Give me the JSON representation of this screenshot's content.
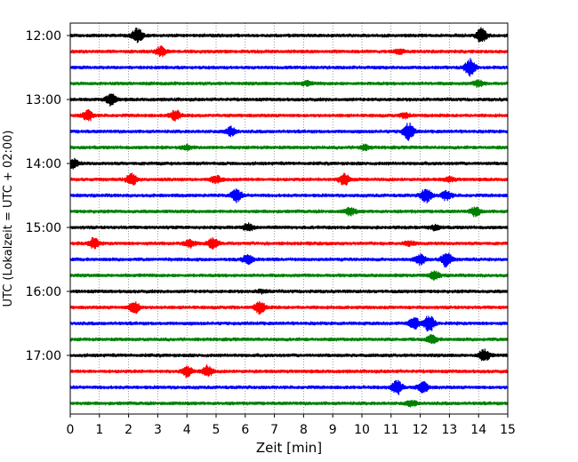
{
  "chart_data": {
    "type": "line",
    "title": "",
    "xlabel": "Zeit  [min]",
    "ylabel": "UTC (Lokalzeit = UTC + 02:00)",
    "xlim": [
      0,
      15
    ],
    "x_ticks": [
      "0",
      "1",
      "2",
      "3",
      "4",
      "5",
      "6",
      "7",
      "8",
      "9",
      "10",
      "11",
      "12",
      "13",
      "14",
      "15"
    ],
    "y_ticks": [
      "12:00",
      "13:00",
      "14:00",
      "15:00",
      "16:00",
      "17:00"
    ],
    "grid": "vertical dotted",
    "trace_interval_minutes": 15,
    "trace_colors": [
      "#000000",
      "#ff0000",
      "#0000ff",
      "#008000"
    ],
    "traces": [
      {
        "start": "12:00",
        "color": "#000000",
        "events": [
          {
            "t": 2.3,
            "amp": 1.0
          },
          {
            "t": 14.1,
            "amp": 1.0
          }
        ]
      },
      {
        "start": "12:15",
        "color": "#ff0000",
        "events": [
          {
            "t": 3.1,
            "amp": 0.6
          },
          {
            "t": 11.3,
            "amp": 0.3
          }
        ]
      },
      {
        "start": "12:30",
        "color": "#0000ff",
        "events": [
          {
            "t": 13.7,
            "amp": 1.1
          }
        ]
      },
      {
        "start": "12:45",
        "color": "#008000",
        "events": [
          {
            "t": 8.1,
            "amp": 0.25
          },
          {
            "t": 14.0,
            "amp": 0.4
          }
        ]
      },
      {
        "start": "13:00",
        "color": "#000000",
        "events": [
          {
            "t": 1.4,
            "amp": 0.8
          }
        ]
      },
      {
        "start": "13:15",
        "color": "#ff0000",
        "events": [
          {
            "t": 0.6,
            "amp": 0.7
          },
          {
            "t": 3.6,
            "amp": 0.7
          },
          {
            "t": 11.5,
            "amp": 0.3
          }
        ]
      },
      {
        "start": "13:30",
        "color": "#0000ff",
        "events": [
          {
            "t": 5.5,
            "amp": 0.6
          },
          {
            "t": 11.6,
            "amp": 1.1
          }
        ]
      },
      {
        "start": "13:45",
        "color": "#008000",
        "events": [
          {
            "t": 4.0,
            "amp": 0.25
          },
          {
            "t": 10.1,
            "amp": 0.3
          }
        ]
      },
      {
        "start": "14:00",
        "color": "#000000",
        "events": [
          {
            "t": 0.1,
            "amp": 0.6
          }
        ]
      },
      {
        "start": "14:15",
        "color": "#ff0000",
        "events": [
          {
            "t": 2.1,
            "amp": 0.8
          },
          {
            "t": 5.0,
            "amp": 0.5
          },
          {
            "t": 9.4,
            "amp": 0.8
          },
          {
            "t": 13.0,
            "amp": 0.3
          }
        ]
      },
      {
        "start": "14:30",
        "color": "#0000ff",
        "events": [
          {
            "t": 5.7,
            "amp": 0.8
          },
          {
            "t": 12.2,
            "amp": 1.0
          },
          {
            "t": 12.9,
            "amp": 0.6
          }
        ]
      },
      {
        "start": "14:45",
        "color": "#008000",
        "events": [
          {
            "t": 9.6,
            "amp": 0.5
          },
          {
            "t": 13.9,
            "amp": 0.6
          }
        ]
      },
      {
        "start": "15:00",
        "color": "#000000",
        "events": [
          {
            "t": 6.1,
            "amp": 0.5
          },
          {
            "t": 12.5,
            "amp": 0.3
          }
        ]
      },
      {
        "start": "15:15",
        "color": "#ff0000",
        "events": [
          {
            "t": 0.8,
            "amp": 0.7
          },
          {
            "t": 4.1,
            "amp": 0.5
          },
          {
            "t": 4.9,
            "amp": 0.7
          },
          {
            "t": 11.6,
            "amp": 0.3
          }
        ]
      },
      {
        "start": "15:30",
        "color": "#0000ff",
        "events": [
          {
            "t": 6.1,
            "amp": 0.6
          },
          {
            "t": 12.0,
            "amp": 0.7
          },
          {
            "t": 12.9,
            "amp": 1.0
          }
        ]
      },
      {
        "start": "15:45",
        "color": "#008000",
        "events": [
          {
            "t": 12.5,
            "amp": 0.5
          }
        ]
      },
      {
        "start": "16:00",
        "color": "#000000",
        "events": [
          {
            "t": 6.6,
            "amp": 0.2
          }
        ]
      },
      {
        "start": "16:15",
        "color": "#ff0000",
        "events": [
          {
            "t": 2.2,
            "amp": 0.8
          },
          {
            "t": 6.5,
            "amp": 0.8
          }
        ]
      },
      {
        "start": "16:30",
        "color": "#0000ff",
        "events": [
          {
            "t": 11.8,
            "amp": 0.8
          },
          {
            "t": 12.3,
            "amp": 1.1
          }
        ]
      },
      {
        "start": "16:45",
        "color": "#008000",
        "events": [
          {
            "t": 12.4,
            "amp": 0.5
          }
        ]
      },
      {
        "start": "17:00",
        "color": "#000000",
        "events": [
          {
            "t": 14.2,
            "amp": 0.8
          }
        ]
      },
      {
        "start": "17:15",
        "color": "#ff0000",
        "events": [
          {
            "t": 4.0,
            "amp": 0.7
          },
          {
            "t": 4.7,
            "amp": 0.7
          }
        ]
      },
      {
        "start": "17:30",
        "color": "#0000ff",
        "events": [
          {
            "t": 11.2,
            "amp": 1.0
          },
          {
            "t": 12.1,
            "amp": 0.7
          }
        ]
      },
      {
        "start": "17:45",
        "color": "#008000",
        "events": [
          {
            "t": 11.7,
            "amp": 0.4
          }
        ]
      }
    ]
  }
}
